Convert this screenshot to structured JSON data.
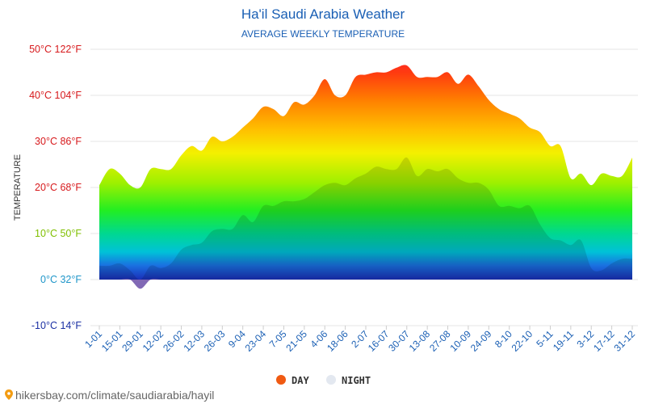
{
  "header": {
    "title": "Ha'il Saudi Arabia Weather",
    "subtitle": "AVERAGE WEEKLY TEMPERATURE"
  },
  "source": {
    "text": "hikersbay.com/climate/saudiarabia/hayil",
    "icon": "location-pin-icon"
  },
  "chart_data": {
    "type": "area",
    "title": "Ha'il Saudi Arabia Weather",
    "subtitle": "AVERAGE WEEKLY TEMPERATURE",
    "ylabel": "TEMPERATURE",
    "xlabel": "",
    "ylim": [
      -10,
      50
    ],
    "grid": true,
    "legend_position": "bottom-center",
    "yticks": [
      {
        "value": 50,
        "label": "50°C 122°F",
        "color": "#d7191c"
      },
      {
        "value": 40,
        "label": "40°C 104°F",
        "color": "#d7191c"
      },
      {
        "value": 30,
        "label": "30°C 86°F",
        "color": "#d7191c"
      },
      {
        "value": 20,
        "label": "20°C 68°F",
        "color": "#d7191c"
      },
      {
        "value": 10,
        "label": "10°C 50°F",
        "color": "#7fbf00"
      },
      {
        "value": 0,
        "label": "0°C 32°F",
        "color": "#1f96c9"
      },
      {
        "value": -10,
        "label": "-10°C 14°F",
        "color": "#1a2fa3"
      }
    ],
    "x_labels": [
      "1-01",
      "15-01",
      "29-01",
      "12-02",
      "26-02",
      "12-03",
      "26-03",
      "9-04",
      "23-04",
      "7-05",
      "21-05",
      "4-06",
      "18-06",
      "2-07",
      "16-07",
      "30-07",
      "13-08",
      "27-08",
      "10-09",
      "24-09",
      "8-10",
      "22-10",
      "5-11",
      "19-11",
      "3-12",
      "17-12",
      "31-12"
    ],
    "series": [
      {
        "name": "DAY",
        "color": "#f05a12",
        "values": [
          20.5,
          24,
          23,
          20.5,
          20,
          24,
          24,
          24,
          27,
          29,
          28,
          31,
          30,
          31,
          33,
          35,
          37.5,
          37,
          35.5,
          38.5,
          38,
          40,
          43.5,
          40,
          40,
          44,
          44.5,
          45,
          45,
          46,
          46.5,
          44,
          44,
          44,
          45,
          42.5,
          44.5,
          42,
          39,
          37,
          36,
          35,
          33,
          32,
          29,
          29,
          22,
          23,
          20.5,
          23,
          22.5,
          22.5,
          26.5
        ]
      },
      {
        "name": "NIGHT",
        "color": "#e3e8f0",
        "values": [
          3,
          3,
          3.5,
          2,
          -2,
          3,
          2.5,
          3.5,
          6.5,
          7.5,
          8,
          10.5,
          11,
          11,
          14,
          12.5,
          16,
          16,
          17,
          17,
          17.5,
          19,
          20.5,
          21,
          20.5,
          22,
          23,
          24.5,
          24,
          24,
          26.5,
          22.5,
          24,
          23.5,
          24,
          22,
          21,
          21,
          19.5,
          16,
          16,
          15.5,
          16,
          12,
          9,
          8.5,
          7.5,
          8.5,
          2.5,
          2,
          3.5,
          4.5,
          4.5
        ]
      }
    ]
  }
}
